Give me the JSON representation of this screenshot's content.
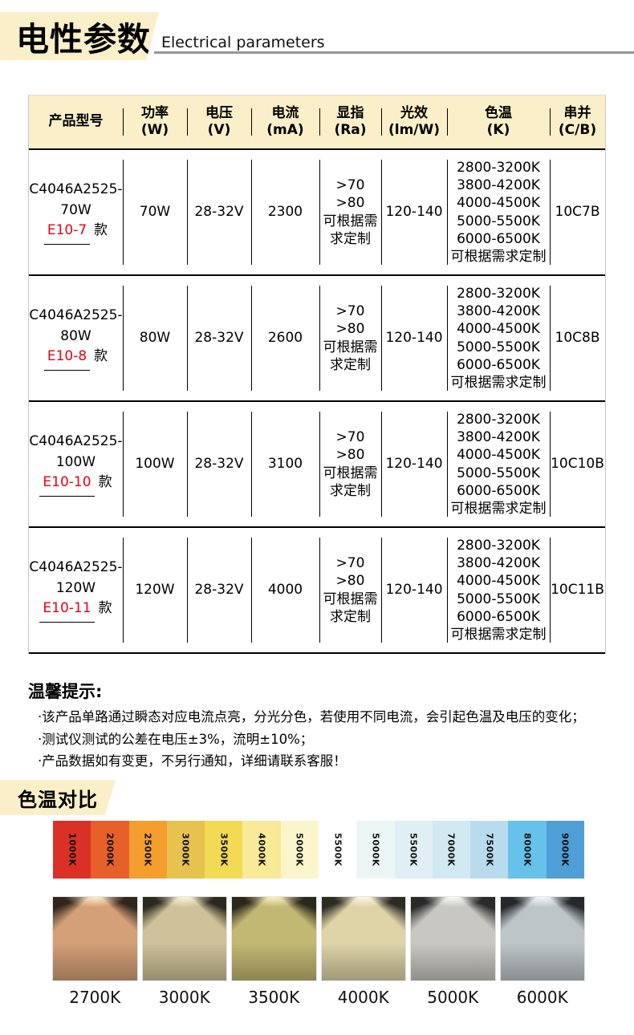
{
  "header": {
    "title_cn": "电性参数",
    "title_en": "Electrical parameters"
  },
  "table": {
    "columns": [
      {
        "label": "产品型号",
        "sub": ""
      },
      {
        "label": "功率",
        "sub": "(W)"
      },
      {
        "label": "电压",
        "sub": "(V)"
      },
      {
        "label": "电流",
        "sub": "(mA)"
      },
      {
        "label": "显指",
        "sub": "(Ra)"
      },
      {
        "label": "光效",
        "sub": "(lm/W)"
      },
      {
        "label": "色温",
        "sub": "(K)"
      },
      {
        "label": "串并",
        "sub": "(C/B)"
      }
    ],
    "rows": [
      {
        "model_line1": "C4046A2525-",
        "model_line2": "70W",
        "variant_code": "E10-7",
        "variant_suffix": "款",
        "power": "70W",
        "voltage": "28-32V",
        "current": "2300",
        "cri": ">70\n>80\n可根据需\n求定制",
        "efficacy": "120-140",
        "cct": "2800-3200K\n3800-4200K\n4000-4500K\n5000-5500K\n6000-6500K\n可根据需求定制",
        "series": "10C7B"
      },
      {
        "model_line1": "C4046A2525-",
        "model_line2": "80W",
        "variant_code": "E10-8",
        "variant_suffix": "款",
        "power": "80W",
        "voltage": "28-32V",
        "current": "2600",
        "cri": ">70\n>80\n可根据需\n求定制",
        "efficacy": "120-140",
        "cct": "2800-3200K\n3800-4200K\n4000-4500K\n5000-5500K\n6000-6500K\n可根据需求定制",
        "series": "10C8B"
      },
      {
        "model_line1": "C4046A2525-",
        "model_line2": "100W",
        "variant_code": "E10-10",
        "variant_suffix": "款",
        "power": "100W",
        "voltage": "28-32V",
        "current": "3100",
        "cri": ">70\n>80\n可根据需\n求定制",
        "efficacy": "120-140",
        "cct": "2800-3200K\n3800-4200K\n4000-4500K\n5000-5500K\n6000-6500K\n可根据需求定制",
        "series": "10C10B"
      },
      {
        "model_line1": "C4046A2525-",
        "model_line2": "120W",
        "variant_code": "E10-11",
        "variant_suffix": "款",
        "power": "120W",
        "voltage": "28-32V",
        "current": "4000",
        "cri": ">70\n>80\n可根据需\n求定制",
        "efficacy": "120-140",
        "cct": "2800-3200K\n3800-4200K\n4000-4500K\n5000-5500K\n6000-6500K\n可根据需求定制",
        "series": "10C11B"
      }
    ]
  },
  "tips": {
    "title": "温馨提示:",
    "items": [
      "·该产品单路通过瞬态对应电流点亮，分光分色，若使用不同电流，会引起色温及电压的变化；",
      "·测试仪测试的公差在电压±3%，流明±10%；",
      "·产品数据如有变更，不另行通知，详细请联系客服！"
    ]
  },
  "cct_compare": {
    "title": "色温对比",
    "scale": [
      {
        "label": "1000K",
        "color": "#db3025"
      },
      {
        "label": "2000K",
        "color": "#e7602a"
      },
      {
        "label": "2500K",
        "color": "#f49e2e"
      },
      {
        "label": "3000K",
        "color": "#e6c34e"
      },
      {
        "label": "3500K",
        "color": "#f3da55"
      },
      {
        "label": "4000K",
        "color": "#f8ea96"
      },
      {
        "label": "5000K",
        "color": "#fbf5cb"
      },
      {
        "label": "5500K",
        "color": "#ffffff"
      },
      {
        "label": "5000K",
        "color": "#edf6f6"
      },
      {
        "label": "5500K",
        "color": "#e0eff5"
      },
      {
        "label": "7000K",
        "color": "#d2e9f2"
      },
      {
        "label": "7500K",
        "color": "#b8dcee"
      },
      {
        "label": "8000K",
        "color": "#66c1eb"
      },
      {
        "label": "9000K",
        "color": "#4f9ed6"
      }
    ],
    "beams": [
      {
        "label": "2700K",
        "wall": "#d4a077",
        "hot": "#ffeccb",
        "dark": "#30261c"
      },
      {
        "label": "3000K",
        "wall": "#cfc299",
        "hot": "#fdf6d8",
        "dark": "#2b281d"
      },
      {
        "label": "3500K",
        "wall": "#c2b873",
        "hot": "#fbf4c0",
        "dark": "#29281a"
      },
      {
        "label": "4000K",
        "wall": "#ded4a8",
        "hot": "#fdfae4",
        "dark": "#2d2b21"
      },
      {
        "label": "5000K",
        "wall": "#c8c7c1",
        "hot": "#fcfcf9",
        "dark": "#2a2a28"
      },
      {
        "label": "6000K",
        "wall": "#bec5c8",
        "hot": "#f7fbfd",
        "dark": "#24282a"
      }
    ]
  }
}
